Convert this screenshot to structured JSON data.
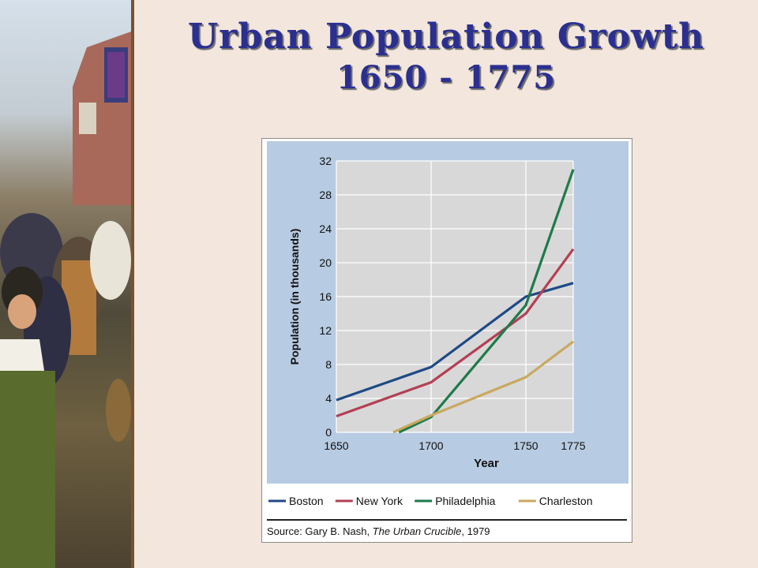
{
  "title": {
    "line1": "Urban Population Growth",
    "line2": "1650 - 1775"
  },
  "chart_data": {
    "type": "line",
    "xlabel": "Year",
    "ylabel": "Population (in thousands)",
    "xlim": [
      1650,
      1775
    ],
    "ylim": [
      0,
      32
    ],
    "x_ticks": [
      1650,
      1700,
      1750,
      1775
    ],
    "y_ticks": [
      0,
      4,
      8,
      12,
      16,
      20,
      24,
      28,
      32
    ],
    "grid": true,
    "legend_position": "bottom",
    "series": [
      {
        "name": "Boston",
        "color": "#1e4a86",
        "x": [
          1650,
          1700,
          1750,
          1775
        ],
        "y": [
          3.8,
          7.7,
          16,
          17.6
        ]
      },
      {
        "name": "New York",
        "color": "#b24055",
        "x": [
          1650,
          1700,
          1750,
          1775
        ],
        "y": [
          1.9,
          5.9,
          14,
          21.6
        ]
      },
      {
        "name": "Philadelphia",
        "color": "#1f7a4a",
        "x": [
          1683,
          1700,
          1750,
          1775
        ],
        "y": [
          0,
          1.8,
          15,
          31
        ]
      },
      {
        "name": "Charleston",
        "color": "#c9a860",
        "x": [
          1680,
          1700,
          1750,
          1775
        ],
        "y": [
          0,
          2,
          6.5,
          10.7
        ]
      }
    ],
    "source_prefix": "Source: Gary B. Nash, ",
    "source_title": "The Urban Crucible",
    "source_suffix": ", 1979"
  },
  "colors": {
    "title_text": "#2b2f8f",
    "plot_panel": "#b7cbe2",
    "plot_area": "#d8d8d8",
    "slide_background": "#f3e6dc"
  }
}
